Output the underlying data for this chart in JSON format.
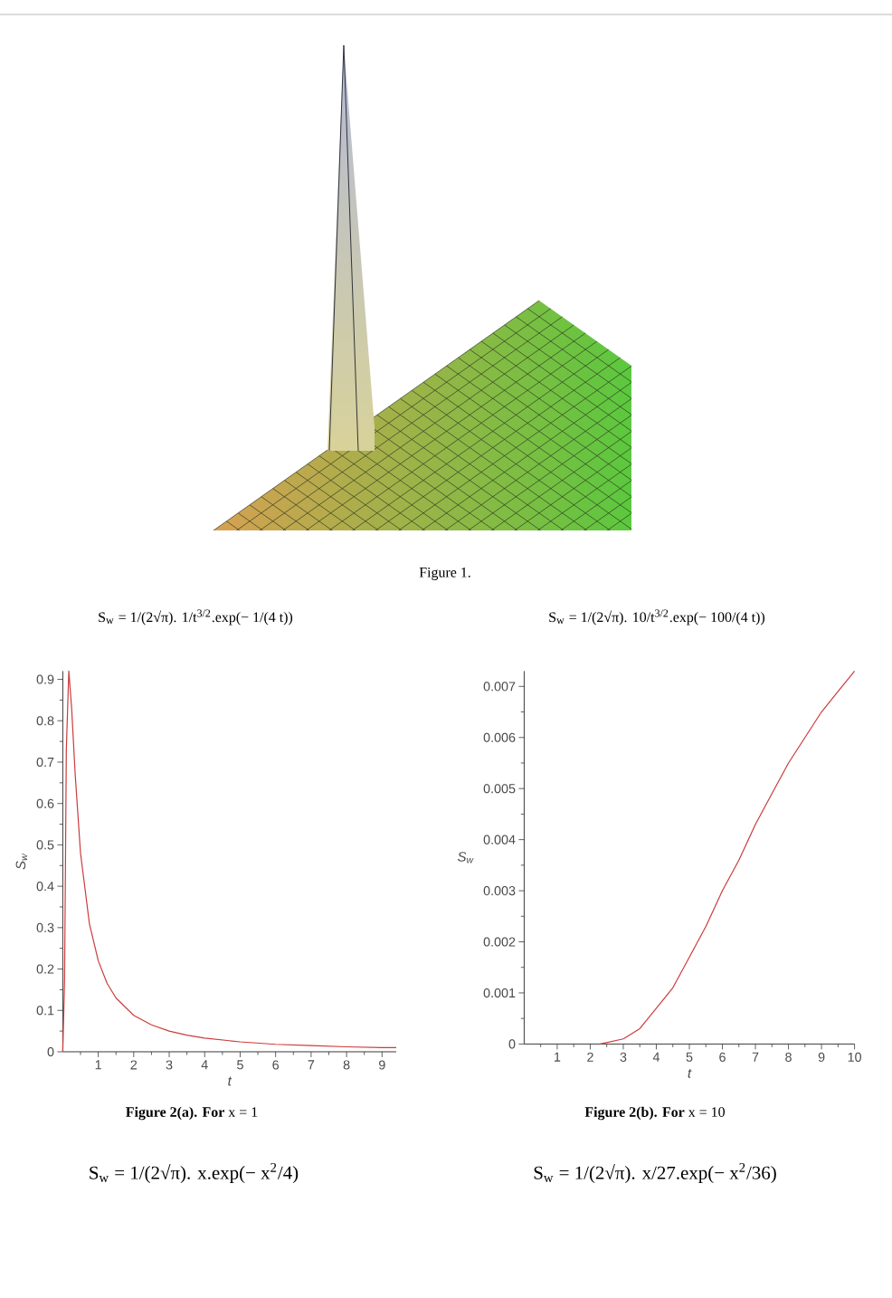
{
  "chart_data": [
    {
      "type": "other",
      "annotations": [
        "Figure 1."
      ]
    },
    {
      "type": "line",
      "title": "S$_{w}$ = 1/(2√π). 1/t$^{3/2}$.exp(− 1/(4 t))",
      "xlabel": "t",
      "ylabel": "S$_{w}$",
      "x": [
        0,
        0.05,
        0.1,
        0.17,
        0.25,
        0.35,
        0.5,
        0.75,
        1,
        1.25,
        1.5,
        2,
        2.5,
        3,
        3.5,
        4,
        5,
        6,
        7,
        8,
        9,
        9.4
      ],
      "values": [
        0,
        0.17,
        0.73,
        0.92,
        0.83,
        0.67,
        0.48,
        0.31,
        0.22,
        0.165,
        0.13,
        0.088,
        0.065,
        0.05,
        0.04,
        0.033,
        0.024,
        0.018,
        0.015,
        0.012,
        0.01,
        0.01
      ],
      "color": "#cc3b3b",
      "xlim": [
        0,
        9.4
      ],
      "ylim": [
        0,
        0.92
      ],
      "xticks": [
        1,
        2,
        3,
        4,
        5,
        6,
        7,
        8,
        9
      ],
      "yticks": [
        0,
        0.1,
        0.2,
        0.3,
        0.4,
        0.5,
        0.6,
        0.7,
        0.8,
        0.9
      ],
      "annotations": [
        "**Figure 2(a). For** x = 1",
        "S$_{w}$ = 1/(2√π). x.exp(− x$^{2}$/4)"
      ]
    },
    {
      "type": "line",
      "title": "S$_{w}$ = 1/(2√π). 10/t$^{3/2}$.exp(− 100/(4 t))",
      "xlabel": "t",
      "ylabel": "S$_{w}$",
      "x": [
        2.3,
        3,
        3.5,
        4,
        4.5,
        5,
        5.5,
        6,
        6.5,
        7,
        7.5,
        8,
        8.5,
        9,
        9.5,
        10
      ],
      "values": [
        0,
        0.0001,
        0.0003,
        0.0007,
        0.0011,
        0.0017,
        0.0023,
        0.003,
        0.0036,
        0.0043,
        0.0049,
        0.0055,
        0.006,
        0.0065,
        0.0069,
        0.0073
      ],
      "color": "#cc3b3b",
      "xlim": [
        0,
        10
      ],
      "ylim": [
        0,
        0.0073
      ],
      "xticks": [
        1,
        2,
        3,
        4,
        5,
        6,
        7,
        8,
        9,
        10
      ],
      "yticks": [
        0,
        0.001,
        0.002,
        0.003,
        0.004,
        0.005,
        0.006,
        0.007
      ],
      "annotations": [
        "**Figure 2(b). For** x = 10",
        "S$_{w}$ = 1/(2√π). x/27.exp(− x$^{2}$/36)"
      ]
    }
  ]
}
